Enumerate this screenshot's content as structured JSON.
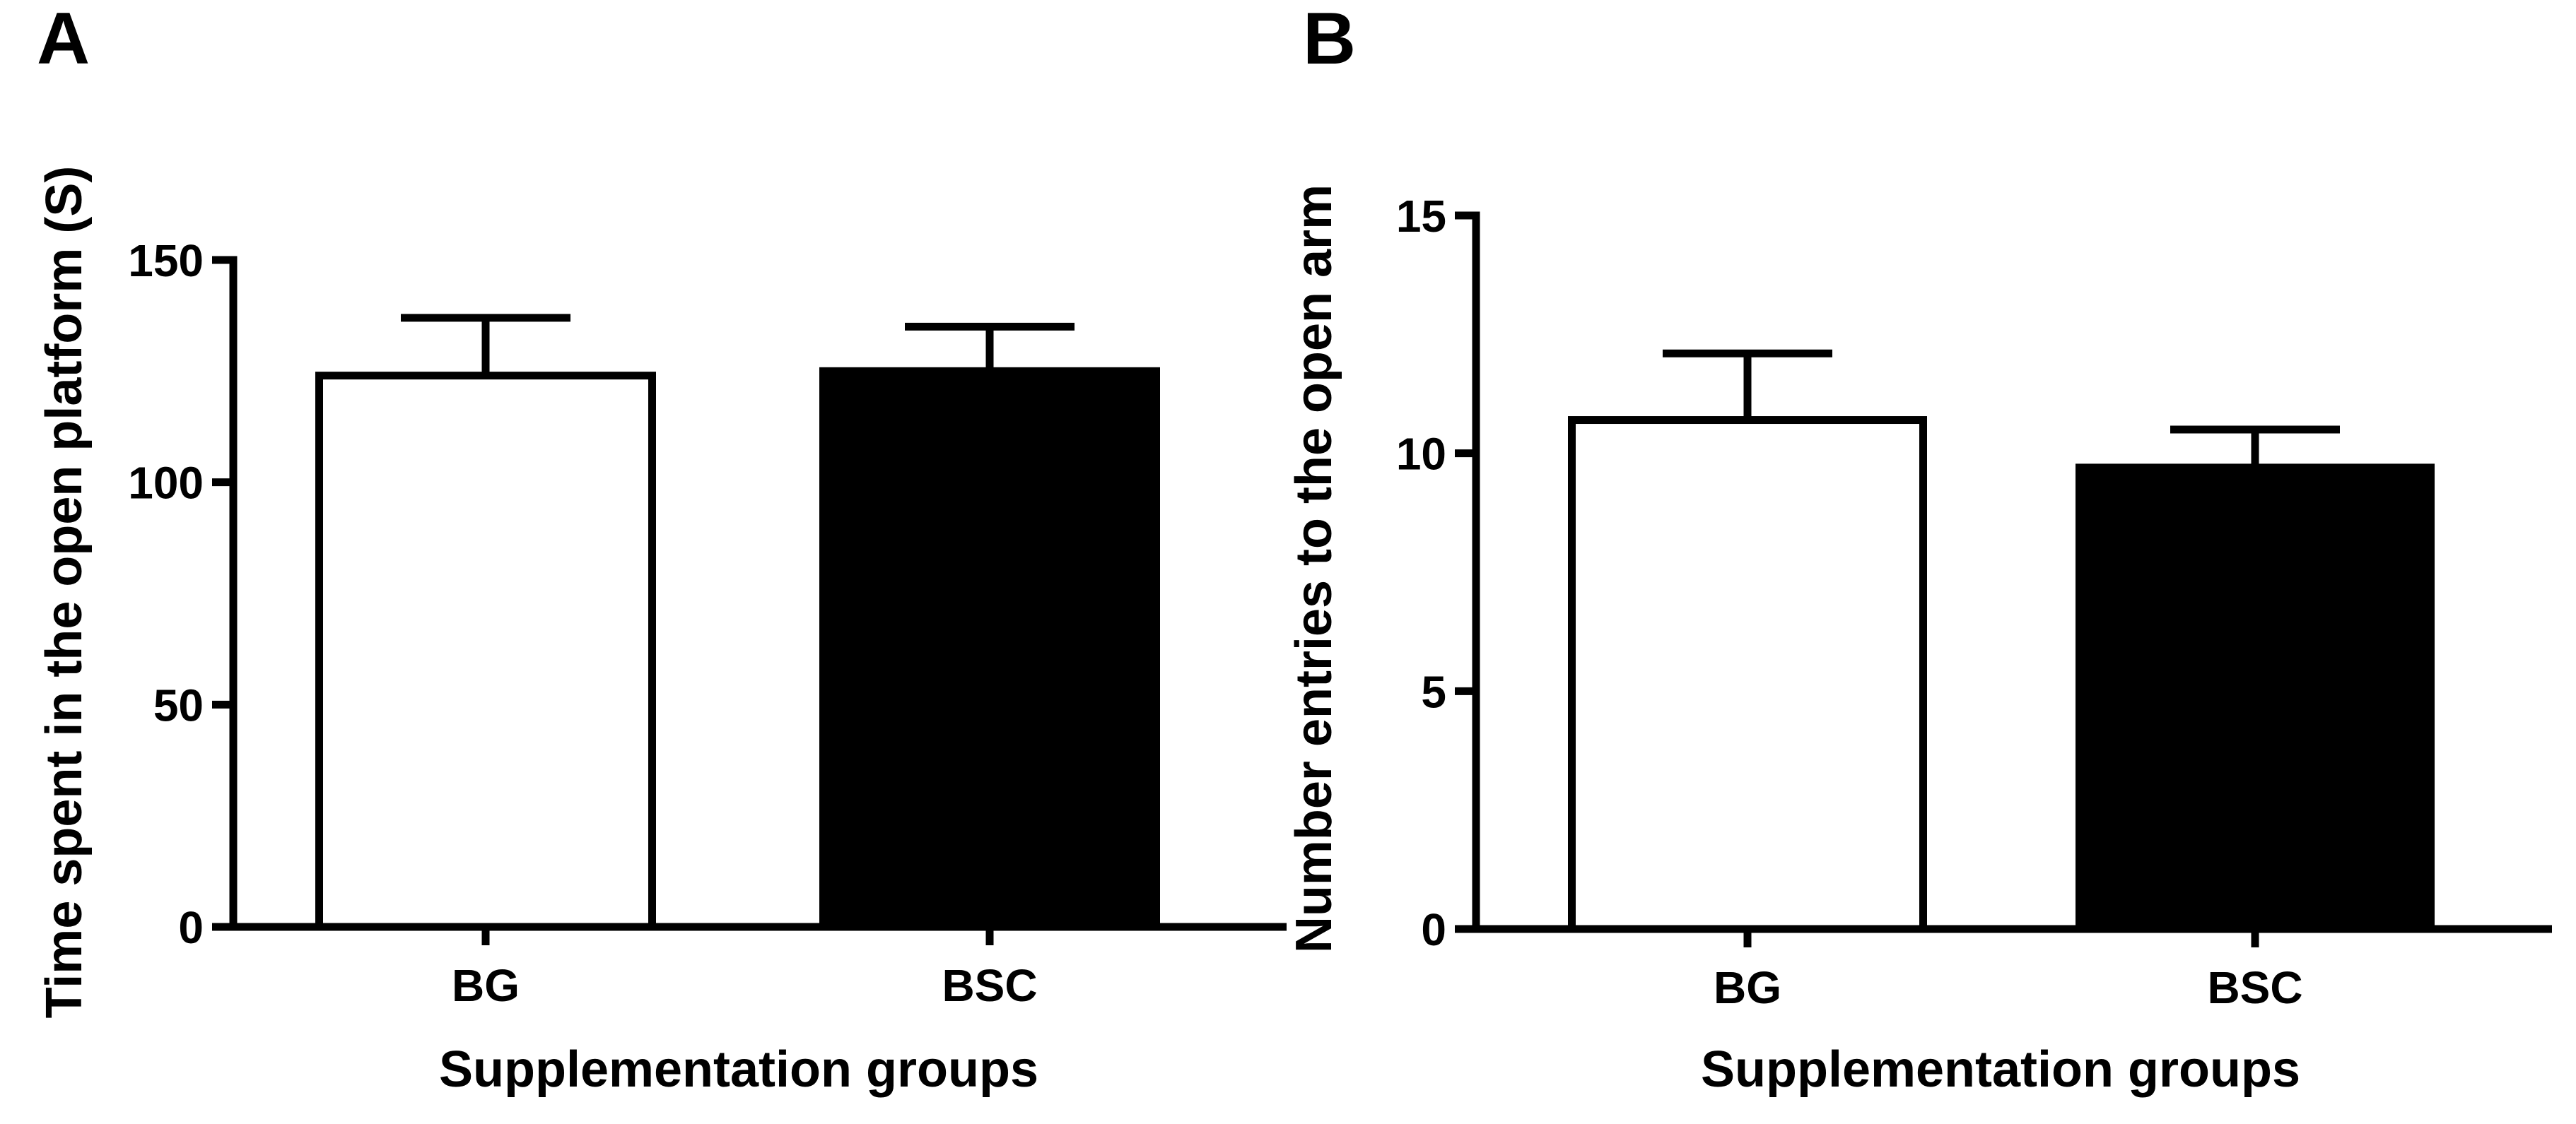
{
  "chart_data": [
    {
      "panel": "A",
      "type": "bar",
      "categories": [
        "BG",
        "BSC"
      ],
      "values": [
        124,
        125
      ],
      "errors": [
        13,
        10
      ],
      "fills": [
        "#ffffff",
        "#000000"
      ],
      "xlabel": "Supplementation groups",
      "ylabel": "Time spent in the open platform (S)",
      "ylim": [
        0,
        150
      ],
      "yticks": [
        0,
        50,
        100,
        150
      ]
    },
    {
      "panel": "B",
      "type": "bar",
      "categories": [
        "BG",
        "BSC"
      ],
      "values": [
        10.7,
        9.7
      ],
      "errors": [
        1.4,
        0.8
      ],
      "fills": [
        "#ffffff",
        "#000000"
      ],
      "xlabel": "Supplementation groups",
      "ylabel": "Number entries to the open arm",
      "ylim": [
        0,
        15
      ],
      "yticks": [
        0,
        5,
        10,
        15
      ]
    }
  ]
}
